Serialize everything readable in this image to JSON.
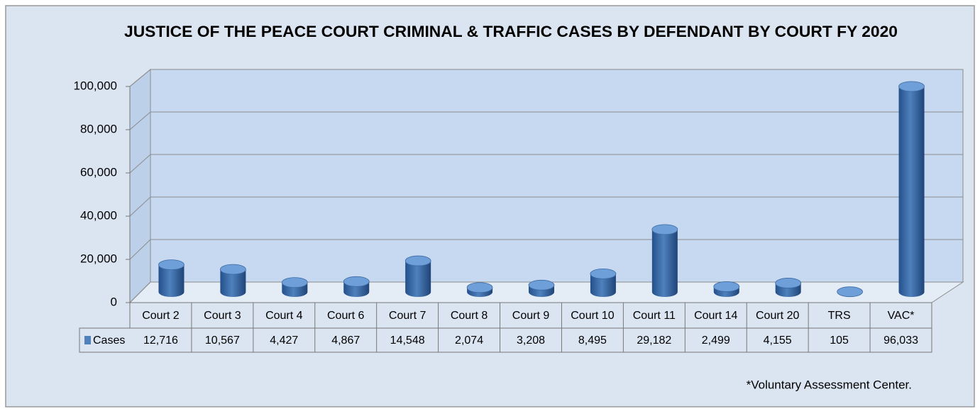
{
  "chart_data": {
    "type": "bar3d",
    "title": "JUSTICE OF THE PEACE COURT CRIMINAL & TRAFFIC CASES BY DEFENDANT BY COURT FY 2020",
    "categories": [
      "Court 2",
      "Court 3",
      "Court 4",
      "Court 6",
      "Court 7",
      "Court 8",
      "Court 9",
      "Court 10",
      "Court 11",
      "Court 14",
      "Court 20",
      "TRS",
      "VAC*"
    ],
    "series": [
      {
        "name": "Cases",
        "color": "#4f81bd",
        "values": [
          12716,
          10567,
          4427,
          4867,
          14548,
          2074,
          3208,
          8495,
          29182,
          2499,
          4155,
          105,
          96033
        ],
        "value_labels": [
          "12,716",
          "10,567",
          "4,427",
          "4,867",
          "14,548",
          "2,074",
          "3,208",
          "8,495",
          "29,182",
          "2,499",
          "4,155",
          "105",
          "96,033"
        ]
      }
    ],
    "ylim": [
      0,
      100000
    ],
    "yticks": [
      0,
      {
        "value": 20000,
        "label": "20,000"
      },
      {
        "value": 40000,
        "label": "40,000"
      },
      {
        "value": 60000,
        "label": "60,000"
      },
      {
        "value": 80000,
        "label": "80,000"
      },
      {
        "value": 100000,
        "label": "100,000"
      }
    ],
    "grid": true,
    "footnote": "*Voluntary Assessment Center."
  }
}
